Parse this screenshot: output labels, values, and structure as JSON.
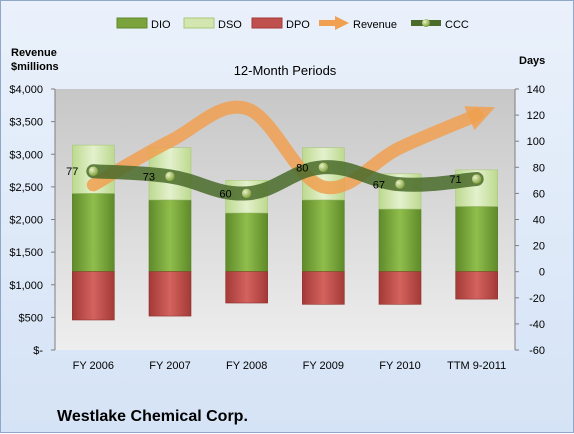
{
  "chart_data": {
    "type": "bar",
    "title": "12-Month Periods",
    "company": "Westlake Chemical Corp.",
    "left_axis_label": [
      "Revenue",
      "$millions"
    ],
    "right_axis_label": "Days",
    "categories": [
      "FY 2006",
      "FY 2007",
      "FY 2008",
      "FY 2009",
      "FY 2010",
      "TTM 9-2011"
    ],
    "left_ticks": [
      "$-",
      "$500",
      "$1,000",
      "$1,500",
      "$2,000",
      "$2,500",
      "$3,000",
      "$3,500",
      "$4,000"
    ],
    "left_ylim": [
      0,
      4000
    ],
    "right_ticks": [
      "-60",
      "-40",
      "-20",
      "0",
      "20",
      "40",
      "60",
      "80",
      "100",
      "120",
      "140"
    ],
    "right_ylim": [
      -60,
      140
    ],
    "series": [
      {
        "name": "DIO",
        "axis": "right",
        "values": [
          60,
          55,
          45,
          55,
          48,
          50
        ],
        "color": "#7aa33c"
      },
      {
        "name": "DSO",
        "axis": "right",
        "values": [
          37,
          40,
          25,
          40,
          27,
          28
        ],
        "color": "#d3e6b0"
      },
      {
        "name": "DPO",
        "axis": "right",
        "values": [
          -37,
          -34,
          -24,
          -25,
          -25,
          -21
        ],
        "color": "#c0504d"
      },
      {
        "name": "Revenue",
        "axis": "left",
        "values": [
          2530,
          3200,
          3700,
          2500,
          3100,
          3600
        ],
        "color": "#f0a050"
      },
      {
        "name": "CCC",
        "axis": "right",
        "values": [
          77,
          73,
          60,
          80,
          67,
          71
        ],
        "color": "#4a6b2a"
      }
    ],
    "data_labels": [
      "77",
      "73",
      "60",
      "80",
      "67",
      "71"
    ],
    "grid": false,
    "legend_position": "top"
  }
}
